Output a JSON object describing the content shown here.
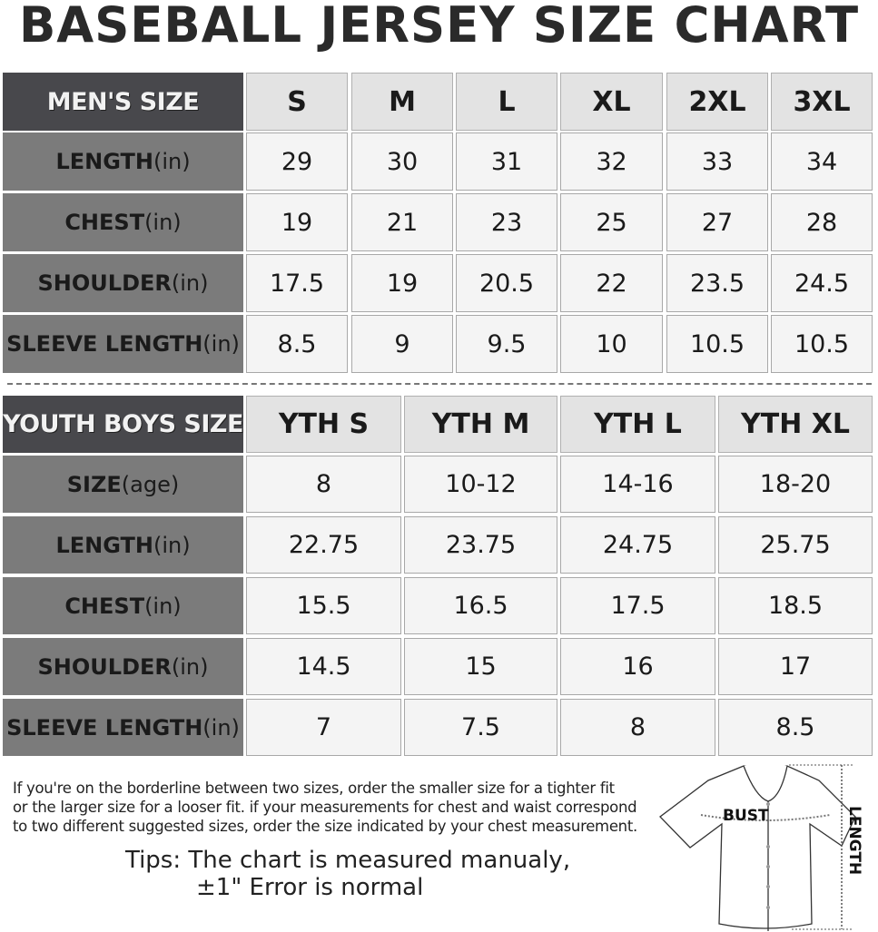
{
  "title": "BASEBALL JERSEY SIZE CHART",
  "men": {
    "header_label": "MEN'S SIZE",
    "sizes": [
      "S",
      "M",
      "L",
      "XL",
      "2XL",
      "3XL"
    ],
    "rows": [
      {
        "label": "LENGTH",
        "unit": "(in)",
        "values": [
          "29",
          "30",
          "31",
          "32",
          "33",
          "34"
        ]
      },
      {
        "label": "CHEST",
        "unit": "(in)",
        "values": [
          "19",
          "21",
          "23",
          "25",
          "27",
          "28"
        ]
      },
      {
        "label": "SHOULDER",
        "unit": "(in)",
        "values": [
          "17.5",
          "19",
          "20.5",
          "22",
          "23.5",
          "24.5"
        ]
      },
      {
        "label": "SLEEVE LENGTH",
        "unit": "(in)",
        "values": [
          "8.5",
          "9",
          "9.5",
          "10",
          "10.5",
          "10.5"
        ]
      }
    ]
  },
  "youth": {
    "header_label": "YOUTH BOYS SIZE",
    "sizes": [
      "YTH S",
      "YTH M",
      "YTH L",
      "YTH XL"
    ],
    "rows": [
      {
        "label": "SIZE",
        "unit": "(age)",
        "values": [
          "8",
          "10-12",
          "14-16",
          "18-20"
        ]
      },
      {
        "label": "LENGTH",
        "unit": "(in)",
        "values": [
          "22.75",
          "23.75",
          "24.75",
          "25.75"
        ]
      },
      {
        "label": "CHEST",
        "unit": "(in)",
        "values": [
          "15.5",
          "16.5",
          "17.5",
          "18.5"
        ]
      },
      {
        "label": "SHOULDER",
        "unit": "(in)",
        "values": [
          "14.5",
          "15",
          "16",
          "17"
        ]
      },
      {
        "label": "SLEEVE LENGTH",
        "unit": "(in)",
        "values": [
          "7",
          "7.5",
          "8",
          "8.5"
        ]
      }
    ]
  },
  "note": {
    "lines": [
      "If you're on the borderline between two sizes, order the smaller size for a tighter fit",
      "or the larger size for a looser fit. if your measurements for chest and waist correspond",
      "to two different suggested sizes, order the size indicated by your chest measurement."
    ]
  },
  "tips": {
    "line1": "Tips: The chart is measured manualy,",
    "line2": "±1\" Error is normal"
  },
  "diagram": {
    "bust_label": "BUST",
    "length_label": "LENGTH"
  },
  "colors": {
    "header_label_bg": "#48484c",
    "row_label_bg": "#7b7b7b",
    "header_cell_bg": "#e3e3e3",
    "data_cell_bg": "#f4f4f4"
  }
}
